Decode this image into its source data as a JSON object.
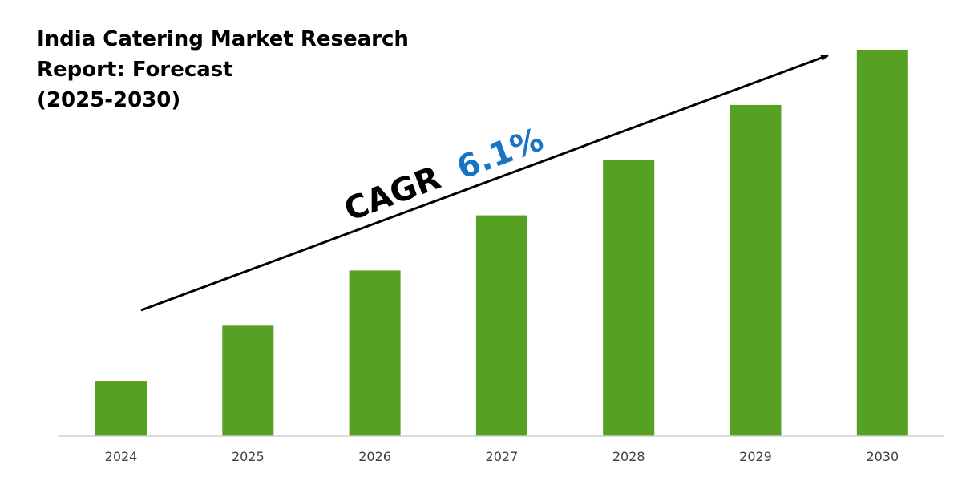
{
  "title": {
    "line1": "India Catering Market Research",
    "line2": "Report: Forecast",
    "line3": "(2025-2030)"
  },
  "annotation": {
    "cagr_label": "CAGR",
    "cagr_value": "6.1%"
  },
  "colors": {
    "bar": "#56a023",
    "cagr_value": "#1874c4",
    "text": "#000000",
    "axis": "#d0d0d0",
    "arrow": "#000000"
  },
  "chart_data": {
    "type": "bar",
    "title": "India Catering Market Research Report: Forecast (2025-2030)",
    "categories": [
      "2024",
      "2025",
      "2026",
      "2027",
      "2028",
      "2029",
      "2030"
    ],
    "values": [
      1,
      2,
      3,
      4,
      5,
      6,
      7
    ],
    "ylim": [
      0,
      7.1
    ],
    "grid": false,
    "legend": "none",
    "xlabel": "",
    "ylabel": ""
  }
}
